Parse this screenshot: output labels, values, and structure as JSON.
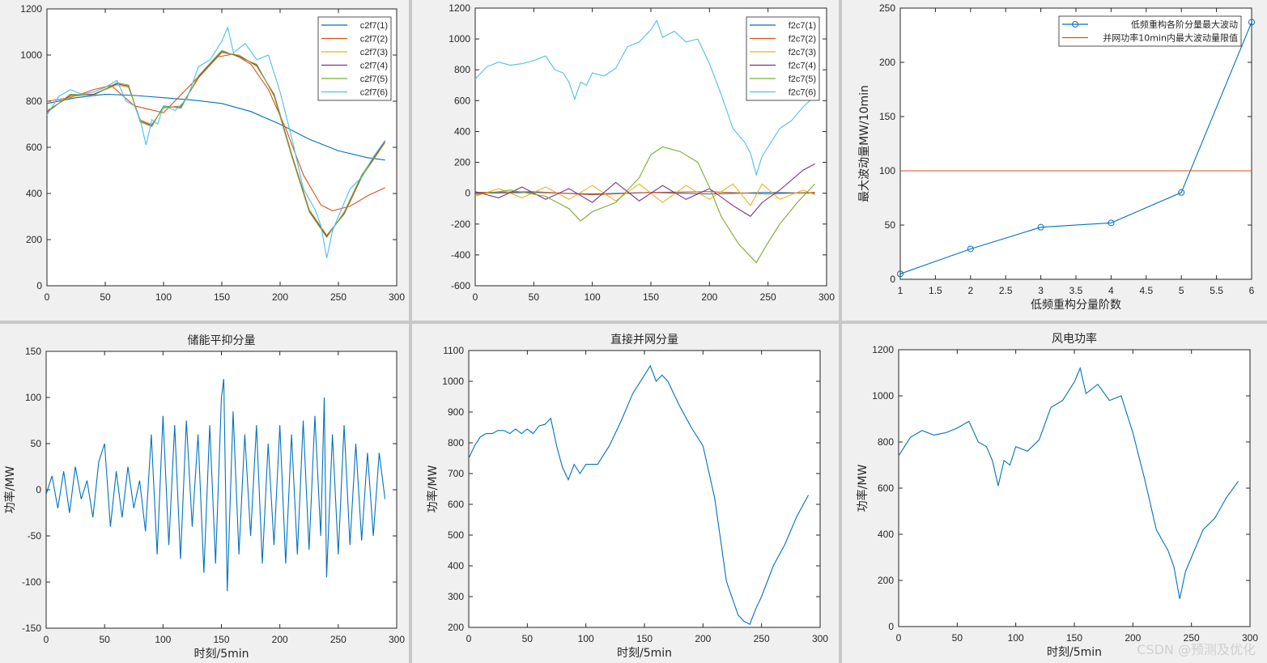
{
  "colors": [
    "#0072bd",
    "#d95319",
    "#edb120",
    "#7e2f8e",
    "#77ac30",
    "#4dbeee"
  ],
  "watermark": "CSDN @预测及优化",
  "chart_data": [
    {
      "id": "c2f7",
      "type": "line",
      "xlim": [
        0,
        300
      ],
      "ylim": [
        0,
        1200
      ],
      "xticks": [
        0,
        50,
        100,
        150,
        200,
        250,
        300
      ],
      "yticks": [
        0,
        200,
        400,
        600,
        800,
        1000,
        1200
      ],
      "title": "",
      "xlabel": "",
      "ylabel": "",
      "legend": "top-right",
      "legend_labels": [
        "c2f7(1)",
        "c2f7(2)",
        "c2f7(3)",
        "c2f7(4)",
        "c2f7(5)",
        "c2f7(6)"
      ],
      "x": [
        0,
        290
      ],
      "series": [
        {
          "name": "c2f7(1)",
          "x": [
            0,
            25,
            50,
            75,
            100,
            125,
            150,
            175,
            200,
            225,
            250,
            275,
            290
          ],
          "values": [
            790,
            815,
            830,
            825,
            815,
            805,
            790,
            755,
            700,
            635,
            585,
            555,
            545
          ]
        },
        {
          "name": "c2f7(2)",
          "x": [
            0,
            20,
            40,
            55,
            75,
            100,
            125,
            145,
            160,
            175,
            190,
            205,
            220,
            235,
            245,
            260,
            275,
            290
          ],
          "values": [
            800,
            815,
            850,
            868,
            780,
            750,
            880,
            990,
            1005,
            960,
            850,
            680,
            480,
            350,
            325,
            345,
            390,
            425
          ]
        },
        {
          "name": "c2f7(3)",
          "x": [
            0,
            20,
            40,
            60,
            70,
            80,
            90,
            100,
            115,
            130,
            150,
            165,
            180,
            195,
            210,
            225,
            240,
            255,
            270,
            290
          ],
          "values": [
            760,
            820,
            830,
            870,
            860,
            720,
            700,
            770,
            780,
            900,
            1010,
            1000,
            950,
            830,
            570,
            330,
            220,
            310,
            470,
            620
          ]
        },
        {
          "name": "c2f7(4)",
          "x": [
            0,
            20,
            40,
            60,
            70,
            80,
            90,
            100,
            115,
            130,
            150,
            165,
            180,
            195,
            210,
            225,
            240,
            255,
            270,
            290
          ],
          "values": [
            755,
            825,
            830,
            875,
            865,
            715,
            695,
            775,
            775,
            905,
            1015,
            995,
            955,
            825,
            565,
            325,
            215,
            315,
            475,
            625
          ]
        },
        {
          "name": "c2f7(5)",
          "x": [
            0,
            20,
            40,
            60,
            70,
            80,
            90,
            100,
            115,
            130,
            150,
            165,
            180,
            195,
            210,
            225,
            240,
            255,
            270,
            290
          ],
          "values": [
            750,
            830,
            825,
            880,
            870,
            710,
            690,
            780,
            770,
            910,
            1020,
            990,
            960,
            820,
            560,
            320,
            210,
            320,
            480,
            630
          ]
        },
        {
          "name": "c2f7(6)",
          "x": [
            0,
            10,
            20,
            30,
            40,
            50,
            60,
            68,
            75,
            80,
            85,
            90,
            95,
            100,
            110,
            120,
            130,
            140,
            150,
            155,
            160,
            170,
            180,
            190,
            200,
            210,
            220,
            230,
            235,
            240,
            245,
            250,
            260,
            270,
            280,
            290
          ],
          "values": [
            740,
            820,
            850,
            830,
            840,
            860,
            890,
            800,
            780,
            720,
            610,
            720,
            700,
            780,
            760,
            810,
            950,
            980,
            1060,
            1120,
            1010,
            1050,
            980,
            1000,
            840,
            640,
            420,
            330,
            260,
            120,
            240,
            300,
            420,
            470,
            560,
            630
          ]
        }
      ]
    },
    {
      "id": "f2c7",
      "type": "line",
      "xlim": [
        0,
        300
      ],
      "ylim": [
        -600,
        1200
      ],
      "xticks": [
        0,
        50,
        100,
        150,
        200,
        250,
        300
      ],
      "yticks": [
        -600,
        -400,
        -200,
        0,
        200,
        400,
        600,
        800,
        1000,
        1200
      ],
      "title": "",
      "xlabel": "",
      "ylabel": "",
      "legend": "top-right",
      "legend_labels": [
        "f2c7(1)",
        "f2c7(2)",
        "f2c7(3)",
        "f2c7(4)",
        "f2c7(5)",
        "f2c7(6)"
      ],
      "series": [
        {
          "name": "f2c7(1)",
          "x": [
            0,
            50,
            100,
            150,
            200,
            250,
            290
          ],
          "values": [
            0,
            5,
            -5,
            5,
            -5,
            5,
            0
          ]
        },
        {
          "name": "f2c7(2)",
          "x": [
            0,
            50,
            100,
            150,
            200,
            250,
            290
          ],
          "values": [
            5,
            10,
            -10,
            5,
            10,
            -5,
            5
          ]
        },
        {
          "name": "f2c7(3)",
          "x": [
            0,
            20,
            40,
            60,
            80,
            100,
            120,
            140,
            160,
            180,
            200,
            220,
            235,
            245,
            260,
            280,
            290
          ],
          "values": [
            -20,
            30,
            -30,
            40,
            -40,
            50,
            -50,
            60,
            -60,
            50,
            -40,
            60,
            -80,
            60,
            -40,
            20,
            -10
          ]
        },
        {
          "name": "f2c7(4)",
          "x": [
            0,
            20,
            40,
            60,
            80,
            100,
            120,
            140,
            160,
            180,
            200,
            220,
            235,
            245,
            260,
            280,
            290
          ],
          "values": [
            10,
            -30,
            40,
            -40,
            30,
            -60,
            70,
            -50,
            50,
            -40,
            30,
            -80,
            -150,
            -60,
            20,
            150,
            190
          ]
        },
        {
          "name": "f2c7(5)",
          "x": [
            0,
            30,
            60,
            80,
            90,
            100,
            120,
            140,
            150,
            160,
            175,
            190,
            200,
            210,
            225,
            240,
            250,
            260,
            275,
            290
          ],
          "values": [
            -10,
            20,
            -20,
            -100,
            -180,
            -120,
            -60,
            100,
            250,
            300,
            270,
            200,
            40,
            -150,
            -330,
            -450,
            -320,
            -200,
            -60,
            60
          ]
        },
        {
          "name": "f2c7(6)",
          "x": [
            0,
            10,
            20,
            30,
            40,
            50,
            60,
            68,
            75,
            80,
            85,
            90,
            95,
            100,
            110,
            120,
            130,
            140,
            150,
            155,
            160,
            170,
            180,
            190,
            200,
            210,
            220,
            230,
            235,
            240,
            245,
            250,
            260,
            270,
            280,
            290
          ],
          "values": [
            740,
            820,
            850,
            830,
            840,
            860,
            890,
            800,
            780,
            720,
            610,
            720,
            700,
            780,
            760,
            810,
            950,
            980,
            1060,
            1120,
            1010,
            1050,
            980,
            1000,
            840,
            640,
            420,
            330,
            260,
            120,
            240,
            300,
            420,
            470,
            560,
            630
          ]
        }
      ]
    },
    {
      "id": "max-fluct",
      "type": "line",
      "xlim": [
        1,
        6
      ],
      "ylim": [
        0,
        250
      ],
      "xticks": [
        1,
        1.5,
        2,
        2.5,
        3,
        3.5,
        4,
        4.5,
        5,
        5.5,
        6
      ],
      "yticks": [
        0,
        50,
        100,
        150,
        200,
        250
      ],
      "title": "",
      "xlabel": "低频重构分量阶数",
      "ylabel": "最大波动量MW/10min",
      "legend": "top-right",
      "legend_labels": [
        "低频重构各阶分量最大波动",
        "并网功率10min内最大波动量限值"
      ],
      "series": [
        {
          "name": "低频重构各阶分量最大波动",
          "x": [
            1,
            2,
            3,
            4,
            5,
            6
          ],
          "values": [
            5,
            28,
            48,
            52,
            80,
            237
          ],
          "marker": "circle"
        },
        {
          "name": "并网功率10min内最大波动量限值",
          "x": [
            1,
            6
          ],
          "values": [
            100,
            100
          ]
        }
      ]
    },
    {
      "id": "storage",
      "type": "line",
      "xlim": [
        0,
        300
      ],
      "ylim": [
        -150,
        150
      ],
      "xticks": [
        0,
        50,
        100,
        150,
        200,
        250,
        300
      ],
      "yticks": [
        -150,
        -100,
        -50,
        0,
        50,
        100,
        150
      ],
      "title": "储能平抑分量",
      "xlabel": "时刻/5min",
      "ylabel": "功率/MW",
      "series": [
        {
          "x": [
            0,
            5,
            10,
            15,
            20,
            25,
            30,
            35,
            40,
            45,
            50,
            55,
            60,
            65,
            70,
            75,
            80,
            85,
            90,
            95,
            100,
            105,
            110,
            115,
            120,
            125,
            130,
            135,
            140,
            145,
            150,
            152,
            155,
            160,
            165,
            170,
            175,
            180,
            185,
            190,
            195,
            200,
            205,
            210,
            215,
            220,
            225,
            230,
            235,
            238,
            240,
            245,
            250,
            255,
            260,
            265,
            270,
            275,
            280,
            285,
            290
          ],
          "values": [
            -5,
            15,
            -20,
            20,
            -25,
            25,
            -10,
            10,
            -30,
            30,
            50,
            -40,
            20,
            -30,
            25,
            -20,
            10,
            -45,
            60,
            -70,
            80,
            -60,
            70,
            -75,
            75,
            -40,
            60,
            -90,
            70,
            -80,
            100,
            120,
            -110,
            85,
            -70,
            60,
            -50,
            70,
            -80,
            50,
            -60,
            70,
            -80,
            60,
            -70,
            75,
            -65,
            80,
            -50,
            100,
            -95,
            60,
            -70,
            70,
            -60,
            50,
            -55,
            40,
            -50,
            40,
            -10
          ]
        }
      ]
    },
    {
      "id": "grid",
      "type": "line",
      "xlim": [
        0,
        300
      ],
      "ylim": [
        200,
        1100
      ],
      "xticks": [
        0,
        50,
        100,
        150,
        200,
        250,
        300
      ],
      "yticks": [
        200,
        300,
        400,
        500,
        600,
        700,
        800,
        900,
        1000,
        1100
      ],
      "title": "直接并网分量",
      "xlabel": "时刻/5min",
      "ylabel": "功率/MW",
      "series": [
        {
          "x": [
            0,
            5,
            10,
            15,
            20,
            25,
            30,
            35,
            40,
            45,
            50,
            55,
            60,
            65,
            70,
            75,
            80,
            85,
            90,
            95,
            100,
            110,
            120,
            130,
            140,
            150,
            155,
            160,
            165,
            170,
            180,
            190,
            200,
            210,
            220,
            230,
            235,
            240,
            245,
            250,
            260,
            270,
            280,
            290
          ],
          "values": [
            750,
            790,
            820,
            830,
            830,
            840,
            840,
            830,
            845,
            830,
            845,
            830,
            855,
            860,
            880,
            790,
            720,
            680,
            730,
            700,
            730,
            730,
            790,
            870,
            960,
            1020,
            1050,
            1000,
            1020,
            1000,
            920,
            850,
            790,
            620,
            350,
            240,
            220,
            210,
            260,
            300,
            400,
            470,
            560,
            630
          ]
        }
      ]
    },
    {
      "id": "wind",
      "type": "line",
      "xlim": [
        0,
        300
      ],
      "ylim": [
        0,
        1200
      ],
      "xticks": [
        0,
        50,
        100,
        150,
        200,
        250,
        300
      ],
      "yticks": [
        0,
        200,
        400,
        600,
        800,
        1000,
        1200
      ],
      "title": "风电功率",
      "xlabel": "时刻/5min",
      "ylabel": "功率/MW",
      "series": [
        {
          "x": [
            0,
            10,
            20,
            30,
            40,
            50,
            60,
            68,
            75,
            80,
            85,
            90,
            95,
            100,
            110,
            120,
            130,
            140,
            150,
            155,
            160,
            170,
            180,
            190,
            200,
            210,
            220,
            230,
            235,
            240,
            245,
            250,
            260,
            270,
            280,
            290
          ],
          "values": [
            740,
            820,
            850,
            830,
            840,
            860,
            890,
            800,
            780,
            720,
            610,
            720,
            700,
            780,
            760,
            810,
            950,
            980,
            1060,
            1120,
            1010,
            1050,
            980,
            1000,
            840,
            640,
            420,
            330,
            260,
            120,
            240,
            300,
            420,
            470,
            560,
            630
          ]
        }
      ]
    }
  ]
}
